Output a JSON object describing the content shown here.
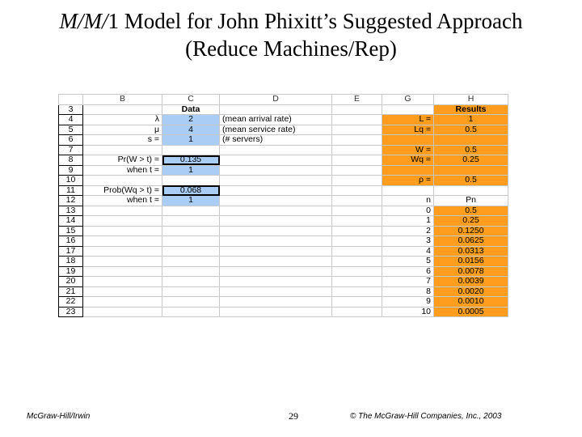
{
  "title": {
    "prefix_italic": "M/M/",
    "line1_rest": "1 Model for John Phixitt’s Suggested Approach",
    "line2": "(Reduce Machines/Rep)"
  },
  "columns": [
    "B",
    "C",
    "D",
    "E",
    "G",
    "H"
  ],
  "rows": [
    {
      "n": "3",
      "b": "",
      "c": "Data",
      "d": "",
      "g": "",
      "h": "Results"
    },
    {
      "n": "4",
      "b": "λ",
      "c": "2",
      "d": "(mean arrival rate)",
      "g": "L =",
      "h": "1"
    },
    {
      "n": "5",
      "b": "μ",
      "c": "4",
      "d": "(mean service rate)",
      "g": "Lq =",
      "h": "0.5"
    },
    {
      "n": "6",
      "b": "s =",
      "c": "1",
      "d": "(# servers)",
      "g": "",
      "h": ""
    },
    {
      "n": "7",
      "b": "",
      "c": "",
      "d": "",
      "g": "W =",
      "h": "0.5"
    },
    {
      "n": "8",
      "b": "Pr(W > t) =",
      "c": "0.135",
      "d": "",
      "g": "Wq =",
      "h": "0.25"
    },
    {
      "n": "9",
      "b": "when t =",
      "c": "1",
      "d": "",
      "g": "",
      "h": ""
    },
    {
      "n": "10",
      "b": "",
      "c": "",
      "d": "",
      "g": "ρ =",
      "h": "0.5"
    },
    {
      "n": "11",
      "b": "Prob(Wq > t) =",
      "c": "0.068",
      "d": "",
      "g": "",
      "h": ""
    },
    {
      "n": "12",
      "b": "when t =",
      "c": "1",
      "d": "",
      "g": "n",
      "h": "Pn"
    },
    {
      "n": "13",
      "b": "",
      "c": "",
      "d": "",
      "g": "0",
      "h": "0.5"
    },
    {
      "n": "14",
      "b": "",
      "c": "",
      "d": "",
      "g": "1",
      "h": "0.25"
    },
    {
      "n": "15",
      "b": "",
      "c": "",
      "d": "",
      "g": "2",
      "h": "0.1250"
    },
    {
      "n": "16",
      "b": "",
      "c": "",
      "d": "",
      "g": "3",
      "h": "0.0625"
    },
    {
      "n": "17",
      "b": "",
      "c": "",
      "d": "",
      "g": "4",
      "h": "0.0313"
    },
    {
      "n": "18",
      "b": "",
      "c": "",
      "d": "",
      "g": "5",
      "h": "0.0156"
    },
    {
      "n": "19",
      "b": "",
      "c": "",
      "d": "",
      "g": "6",
      "h": "0.0078"
    },
    {
      "n": "20",
      "b": "",
      "c": "",
      "d": "",
      "g": "7",
      "h": "0.0039"
    },
    {
      "n": "21",
      "b": "",
      "c": "",
      "d": "",
      "g": "8",
      "h": "0.0020"
    },
    {
      "n": "22",
      "b": "",
      "c": "",
      "d": "",
      "g": "9",
      "h": "0.0010"
    },
    {
      "n": "23",
      "b": "",
      "c": "",
      "d": "",
      "g": "10",
      "h": "0.0005"
    }
  ],
  "colors": {
    "data_blue": "#a9cdf5",
    "results_orange": "#ff9d1f"
  },
  "footer": {
    "left": "McGraw-Hill/Irwin",
    "page": "29",
    "right": "© The McGraw-Hill Companies, Inc., 2003"
  }
}
